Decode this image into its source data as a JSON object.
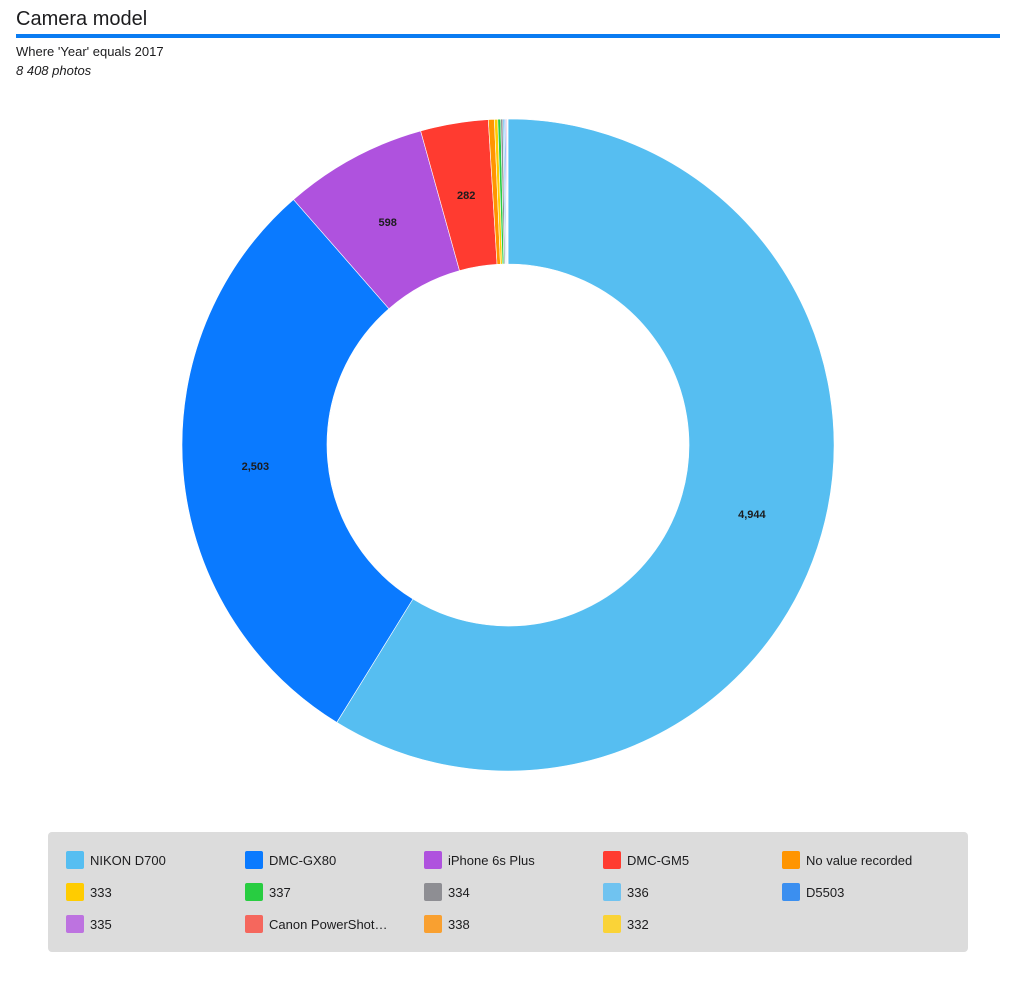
{
  "header": {
    "title": "Camera model",
    "subtitle": "Where  'Year' equals 2017",
    "count": "8 408 photos"
  },
  "chart_data": {
    "type": "pie",
    "donut": true,
    "legend_position": "bottom",
    "slices": [
      {
        "label": "NIKON D700",
        "value": 4944,
        "value_label": "4,944",
        "color": "#56bef1"
      },
      {
        "label": "DMC-GX80",
        "value": 2503,
        "value_label": "2,503",
        "color": "#0a7aff"
      },
      {
        "label": "iPhone 6s Plus",
        "value": 598,
        "value_label": "598",
        "color": "#af52de"
      },
      {
        "label": "DMC-GM5",
        "value": 282,
        "value_label": "282",
        "color": "#ff3b30"
      },
      {
        "label": "No value recorded",
        "value": 25,
        "value_label": "",
        "color": "#ff9500"
      },
      {
        "label": "333",
        "value": 14,
        "value_label": "",
        "color": "#ffcc00"
      },
      {
        "label": "337",
        "value": 12,
        "value_label": "",
        "color": "#28cd41"
      },
      {
        "label": "334",
        "value": 9,
        "value_label": "",
        "color": "#8e8e93"
      },
      {
        "label": "336",
        "value": 6,
        "value_label": "",
        "color": "#70c3f0"
      },
      {
        "label": "D5503",
        "value": 5,
        "value_label": "",
        "color": "#3b8ff0"
      },
      {
        "label": "335",
        "value": 4,
        "value_label": "",
        "color": "#bd73e0"
      },
      {
        "label": "Canon PowerShot…",
        "value": 3,
        "value_label": "",
        "color": "#f5675d"
      },
      {
        "label": "338",
        "value": 2,
        "value_label": "",
        "color": "#f9a030"
      },
      {
        "label": "332",
        "value": 1,
        "value_label": "",
        "color": "#fad337"
      }
    ]
  }
}
